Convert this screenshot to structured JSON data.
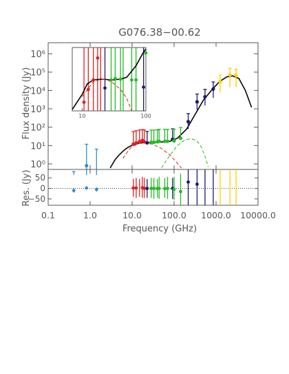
{
  "chart_data": {
    "type": "scatter",
    "title": "G076.38−00.62",
    "main_panel": {
      "ylabel": "Flux density (Jy)",
      "x_scale": "log",
      "y_scale": "log",
      "xlim": [
        0.1,
        10000.0
      ],
      "ylim": [
        0.5,
        4000000
      ],
      "y_tick_labels": [
        "10⁰",
        "10¹",
        "10²",
        "10³",
        "10⁴",
        "10⁵",
        "10⁶"
      ],
      "series": [
        {
          "color": "#2e8fd6",
          "points": [
            {
              "x": 0.408,
              "y": 0.08,
              "err": [
                0.08,
                0.3
              ]
            },
            {
              "x": 0.82,
              "y": 0.8,
              "err": [
                0.8,
                11
              ]
            },
            {
              "x": 1.42,
              "y": 0.4,
              "err": [
                0.4,
                6
              ]
            }
          ]
        },
        {
          "color": "#e02020",
          "points": [
            {
              "x": 10.7,
              "y": 12,
              "err": [
                1,
                45
              ]
            },
            {
              "x": 12.5,
              "y": 14,
              "err": [
                1,
                50
              ]
            },
            {
              "x": 15.0,
              "y": 16,
              "err": [
                1,
                55
              ]
            },
            {
              "x": 17.5,
              "y": 19,
              "err": [
                1,
                55
              ]
            },
            {
              "x": 19.5,
              "y": 16,
              "err": [
                1,
                55
              ]
            }
          ]
        },
        {
          "color": "#1a1a6e",
          "points": [
            {
              "x": 22.8,
              "y": 14,
              "err": [
                1,
                45
              ]
            },
            {
              "x": 92.0,
              "y": 22,
              "err": [
                1,
                60
              ]
            },
            {
              "x": 217,
              "y": 200,
              "err": [
                120,
                350
              ]
            },
            {
              "x": 353,
              "y": 2400,
              "err": [
                1500,
                4000
              ]
            },
            {
              "x": 545,
              "y": 4500,
              "err": [
                3000,
                7000
              ]
            },
            {
              "x": 857,
              "y": 12000,
              "err": [
                8000,
                17000
              ]
            }
          ]
        },
        {
          "color": "#22bb22",
          "points": [
            {
              "x": 28.5,
              "y": 15,
              "err": [
                1,
                55
              ]
            },
            {
              "x": 33.0,
              "y": 15,
              "err": [
                1,
                55
              ]
            },
            {
              "x": 40.0,
              "y": 16,
              "err": [
                1,
                55
              ]
            },
            {
              "x": 44.0,
              "y": 17,
              "err": [
                1,
                60
              ]
            },
            {
              "x": 60.0,
              "y": 17,
              "err": [
                1,
                60
              ]
            },
            {
              "x": 70.0,
              "y": 17,
              "err": [
                1,
                60
              ]
            },
            {
              "x": 100.0,
              "y": 18,
              "err": [
                1,
                60
              ]
            },
            {
              "x": 143.0,
              "y": 25,
              "err": [
                1,
                70
              ]
            }
          ]
        },
        {
          "color": "#ffcc00",
          "points": [
            {
              "x": 1250,
              "y": 30000,
              "err": [
                22000,
                38000
              ]
            },
            {
              "x": 2140,
              "y": 70000,
              "err": [
                55000,
                90000
              ]
            },
            {
              "x": 3000,
              "y": 65000,
              "err": [
                50000,
                80000
              ]
            }
          ]
        }
      ],
      "model_curves": [
        {
          "style": "solid",
          "color": "#000000",
          "points": [
            [
              3,
              0.6
            ],
            [
              4,
              1.8
            ],
            [
              5,
              3.2
            ],
            [
              6,
              4.8
            ],
            [
              7,
              6.5
            ],
            [
              8,
              8
            ],
            [
              10,
              10.5
            ],
            [
              15,
              13.5
            ],
            [
              20,
              14.5
            ],
            [
              30,
              15
            ],
            [
              50,
              15.5
            ],
            [
              80,
              17
            ],
            [
              120,
              25
            ],
            [
              200,
              80
            ],
            [
              300,
              400
            ],
            [
              500,
              3000
            ],
            [
              800,
              11000
            ],
            [
              1200,
              30000
            ],
            [
              1800,
              55000
            ],
            [
              2500,
              62000
            ],
            [
              3500,
              45000
            ],
            [
              5000,
              10000
            ],
            [
              7000,
              1200
            ]
          ]
        },
        {
          "style": "dashed",
          "color": "#e02020",
          "points": [
            [
              6,
              2
            ],
            [
              8,
              5
            ],
            [
              10,
              9
            ],
            [
              15,
              13
            ],
            [
              20,
              13.5
            ],
            [
              30,
              12
            ],
            [
              50,
              7
            ],
            [
              80,
              3
            ],
            [
              120,
              1.1
            ],
            [
              150,
              0.6
            ]
          ]
        },
        {
          "style": "dashed",
          "color": "#22bb22",
          "points": [
            [
              50,
              0.6
            ],
            [
              80,
              3
            ],
            [
              120,
              10
            ],
            [
              180,
              20
            ],
            [
              250,
              24
            ],
            [
              350,
              18
            ],
            [
              450,
              8
            ],
            [
              550,
              2.5
            ],
            [
              650,
              0.7
            ]
          ]
        }
      ]
    },
    "inset": {
      "x_scale": "log",
      "y_scale": "log",
      "xlim": [
        7,
        100
      ],
      "ylim": [
        1000,
        3000000
      ],
      "x_tick_labels": [
        "10",
        "100"
      ],
      "series": [
        {
          "color": "#e02020",
          "x": [
            10.7,
            12.5,
            15.0,
            17.5,
            19.5
          ]
        },
        {
          "color": "#1a1a6e",
          "x": [
            22.8,
            92.0
          ]
        },
        {
          "color": "#22bb22",
          "x": [
            28.5,
            33.0,
            40.0,
            44.0,
            60.0,
            70.0
          ]
        }
      ],
      "points": [
        {
          "x": 10.7,
          "y": 3000,
          "color": "#e02020"
        },
        {
          "x": 12.5,
          "y": 15000,
          "color": "#e02020"
        },
        {
          "x": 15.0,
          "y": 50000,
          "color": "#e02020"
        },
        {
          "x": 17.5,
          "y": 800000,
          "color": "#e02020"
        },
        {
          "x": 22.8,
          "y": 18000,
          "color": "#1a1a6e"
        },
        {
          "x": 28.5,
          "y": 50000,
          "color": "#22bb22"
        },
        {
          "x": 33.0,
          "y": 60000,
          "color": "#22bb22"
        },
        {
          "x": 40.0,
          "y": 55000,
          "color": "#22bb22"
        },
        {
          "x": 60.0,
          "y": 50000,
          "color": "#22bb22"
        },
        {
          "x": 70.0,
          "y": 50000,
          "color": "#22bb22"
        },
        {
          "x": 92.0,
          "y": 20000,
          "color": "#1a1a6e"
        },
        {
          "x": 100.0,
          "y": 1500000,
          "color": "#22bb22"
        }
      ],
      "model_curves": [
        {
          "style": "solid",
          "color": "#000000",
          "points": [
            [
              7,
              1200
            ],
            [
              10,
              8000
            ],
            [
              12,
              30000
            ],
            [
              15,
              50000
            ],
            [
              20,
              55000
            ],
            [
              30,
              50000
            ],
            [
              40,
              55000
            ],
            [
              50,
              70000
            ],
            [
              60,
              150000
            ],
            [
              70,
              300000
            ],
            [
              80,
              700000
            ],
            [
              90,
              1500000
            ],
            [
              100,
              2500000
            ]
          ]
        },
        {
          "style": "dashed",
          "color": "#e02020",
          "points": [
            [
              10,
              6000
            ],
            [
              15,
              40000
            ],
            [
              20,
              55000
            ],
            [
              25,
              50000
            ],
            [
              30,
              35000
            ],
            [
              40,
              15000
            ],
            [
              50,
              5000
            ],
            [
              60,
              1000
            ]
          ]
        }
      ]
    },
    "residual_panel": {
      "ylabel": "Res. (Jy)",
      "ylim": [
        -80,
        90
      ],
      "y_ticks": [
        -50,
        0,
        50
      ],
      "y_tick_labels": [
        "−50",
        "0",
        "50"
      ],
      "points": [
        {
          "x": 0.408,
          "y": -10,
          "color": "#2e8fd6"
        },
        {
          "x": 0.82,
          "y": 2,
          "color": "#2e8fd6"
        },
        {
          "x": 1.42,
          "y": -5,
          "color": "#2e8fd6"
        },
        {
          "x": 10.7,
          "y": 2,
          "color": "#e02020"
        },
        {
          "x": 12.5,
          "y": 2,
          "color": "#e02020"
        },
        {
          "x": 17.5,
          "y": 3,
          "color": "#e02020"
        },
        {
          "x": 19.5,
          "y": 0,
          "color": "#e02020"
        },
        {
          "x": 22.8,
          "y": 0,
          "color": "#1a1a6e"
        },
        {
          "x": 28.5,
          "y": 0,
          "color": "#22bb22"
        },
        {
          "x": 33.0,
          "y": 0,
          "color": "#22bb22"
        },
        {
          "x": 40.0,
          "y": -1,
          "color": "#22bb22"
        },
        {
          "x": 44.0,
          "y": 0,
          "color": "#22bb22"
        },
        {
          "x": 60.0,
          "y": -1,
          "color": "#22bb22"
        },
        {
          "x": 70.0,
          "y": 0,
          "color": "#22bb22"
        },
        {
          "x": 92.0,
          "y": 0,
          "color": "#1a1a6e"
        },
        {
          "x": 100.0,
          "y": -4,
          "color": "#22bb22"
        },
        {
          "x": 143.0,
          "y": -15,
          "color": "#22bb22"
        },
        {
          "x": 217,
          "y": 30,
          "color": "#1a1a6e"
        },
        {
          "x": 353,
          "y": 20,
          "color": "#1a1a6e"
        }
      ],
      "error_bars": [
        {
          "x": 0.408,
          "low": -20,
          "high": 0,
          "color": "#2e8fd6"
        },
        {
          "x": 0.82,
          "low": -5,
          "high": 10,
          "color": "#2e8fd6"
        },
        {
          "x": 1.42,
          "low": -15,
          "high": 5,
          "color": "#2e8fd6"
        },
        {
          "x": 10.7,
          "low": -40,
          "high": 45,
          "color": "#e02020"
        },
        {
          "x": 12.5,
          "low": -45,
          "high": 50,
          "color": "#e02020"
        },
        {
          "x": 15.0,
          "low": -40,
          "high": 45,
          "color": "#e02020"
        },
        {
          "x": 17.5,
          "low": -45,
          "high": 55,
          "color": "#e02020"
        },
        {
          "x": 19.5,
          "low": -45,
          "high": 50,
          "color": "#e02020"
        },
        {
          "x": 22.8,
          "low": -45,
          "high": 45,
          "color": "#1a1a6e"
        },
        {
          "x": 28.5,
          "low": -45,
          "high": 50,
          "color": "#22bb22"
        },
        {
          "x": 33.0,
          "low": -50,
          "high": 50,
          "color": "#22bb22"
        },
        {
          "x": 40.0,
          "low": -45,
          "high": 45,
          "color": "#22bb22"
        },
        {
          "x": 44.0,
          "low": -50,
          "high": 55,
          "color": "#22bb22"
        },
        {
          "x": 60.0,
          "low": -45,
          "high": 50,
          "color": "#22bb22"
        },
        {
          "x": 70.0,
          "low": -50,
          "high": 55,
          "color": "#22bb22"
        },
        {
          "x": 92.0,
          "low": -50,
          "high": 50,
          "color": "#1a1a6e"
        },
        {
          "x": 100.0,
          "low": -55,
          "high": 55,
          "color": "#22bb22"
        },
        {
          "x": 143.0,
          "low": -80,
          "high": 70,
          "color": "#22bb22"
        },
        {
          "x": 217,
          "low": -80,
          "high": 90,
          "color": "#1a1a6e"
        },
        {
          "x": 353,
          "low": -80,
          "high": 90,
          "color": "#1a1a6e"
        },
        {
          "x": 545,
          "low": -80,
          "high": 90,
          "color": "#1a1a6e"
        },
        {
          "x": 857,
          "low": -80,
          "high": 90,
          "color": "#1a1a6e"
        },
        {
          "x": 1250,
          "low": -80,
          "high": 90,
          "color": "#ffcc00"
        },
        {
          "x": 2140,
          "low": -80,
          "high": 90,
          "color": "#ffcc00"
        },
        {
          "x": 3000,
          "low": -80,
          "high": 90,
          "color": "#ffcc00"
        }
      ],
      "zero_line": "dotted"
    },
    "xlabel": "Frequency (GHz)",
    "x_tick_values": [
      0.1,
      1.0,
      10.0,
      100.0,
      1000.0,
      10000.0
    ],
    "x_tick_labels": [
      "0.1",
      "1.0",
      "10.0",
      "100.0",
      "1000.0",
      "10000.0"
    ],
    "grid": false,
    "legend": "none"
  }
}
